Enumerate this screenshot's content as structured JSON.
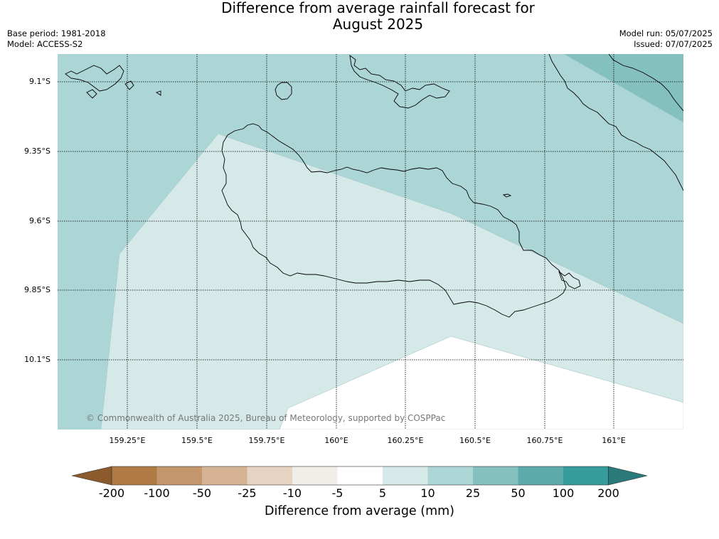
{
  "title": {
    "line1": "Difference from average rainfall forecast for",
    "line2": "August 2025"
  },
  "meta_left": {
    "base_period": "Base period: 1981-2018",
    "model": "Model: ACCESS-S2"
  },
  "meta_right": {
    "model_run": "Model run: 05/07/2025",
    "issued": "Issued: 07/07/2025"
  },
  "latitude_labels": [
    "9.1°S",
    "9.35°S",
    "9.6°S",
    "9.85°S",
    "10.1°S"
  ],
  "longitude_labels": [
    "159.25°E",
    "159.5°E",
    "159.75°E",
    "160°E",
    "160.25°E",
    "160.5°E",
    "160.75°E",
    "161°E"
  ],
  "credit": "© Commonwealth of Australia 2025, Bureau of Meteorology, supported by COSPPac",
  "colorbar": {
    "title": "Difference from average (mm)",
    "labels": [
      "-200",
      "-100",
      "-50",
      "-25",
      "-10",
      "-5",
      "5",
      "10",
      "25",
      "50",
      "100",
      "200"
    ],
    "colors": [
      "#8c5a2c",
      "#b07a44",
      "#c4966c",
      "#d6b394",
      "#e6d3c1",
      "#f1ede9",
      "#ffffff",
      "#d4e9e8",
      "#acd5d5",
      "#84c0c0",
      "#5caaaa",
      "#359b9b",
      "#2a7a7a"
    ]
  },
  "map_colors": {
    "class_5_10": "#d4e9e8",
    "class_10_25": "#acd5d5",
    "class_25_50": "#84c0c0",
    "no_change": "#ffffff",
    "coastline": "#000000",
    "gridlines": "#000000"
  }
}
